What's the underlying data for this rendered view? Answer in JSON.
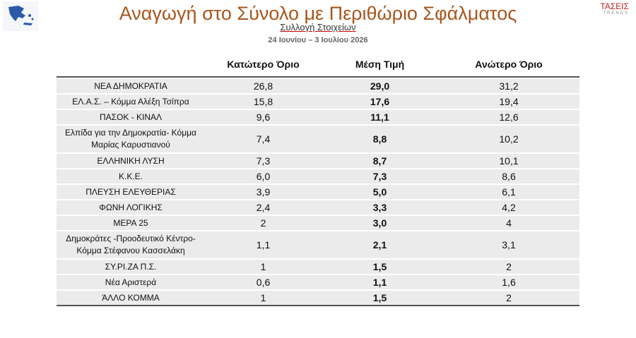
{
  "header": {
    "title": "Αναγωγή στο Σύνολο με Περιθώριο Σφάλματος",
    "subtitle": "Συλλογή Στοιχείων",
    "dates": "24 Ιουνίου – 3 Ιουλίου 2026",
    "logo": "ΤΑΣΕΙΣ",
    "logo_sub": "TRENDS"
  },
  "table": {
    "columns": [
      "Κατώτερο Όριο",
      "Μέση Τιμή",
      "Ανώτερο Όριο"
    ],
    "rows": [
      [
        "ΝΕΑ ΔΗΜΟΚΡΑΤΙΑ",
        "26,8",
        "29,0",
        "31,2"
      ],
      [
        "ΕΛ.Α.Σ. – Κόμμα Αλέξη Τσίπρα",
        "15,8",
        "17,6",
        "19,4"
      ],
      [
        "ΠΑΣΟΚ - ΚΙΝΑΛ",
        "9,6",
        "11,1",
        "12,6"
      ],
      [
        "Ελπίδα για την Δημοκρατία- Κόμμα Μαρίας Καρυστιανού",
        "7,4",
        "8,8",
        "10,2"
      ],
      [
        "ΕΛΛΗΝΙΚΗ ΛΥΣΗ",
        "7,3",
        "8,7",
        "10,1"
      ],
      [
        "Κ.Κ.Ε.",
        "6,0",
        "7,3",
        "8,6"
      ],
      [
        "ΠΛΕΥΣΗ ΕΛΕΥΘΕΡΙΑΣ",
        "3,9",
        "5,0",
        "6,1"
      ],
      [
        "ΦΩΝΗ ΛΟΓΙΚΗΣ",
        "2,4",
        "3,3",
        "4,2"
      ],
      [
        "ΜΕΡΑ 25",
        "2",
        "3,0",
        "4"
      ],
      [
        "Δημοκράτες -Προοδευτικό Κέντρο- Κόμμα Στέφανου Κασσελάκη",
        "1,1",
        "2,1",
        "3,1"
      ],
      [
        "ΣΥ.ΡΙ.ΖΑ Π.Σ.",
        "1",
        "1,5",
        "2"
      ],
      [
        "Νέα Αριστερά",
        "0,6",
        "1,1",
        "1,6"
      ],
      [
        "ΆΛΛΟ ΚΟΜΜΑ",
        "1",
        "1,5",
        "2"
      ]
    ]
  }
}
